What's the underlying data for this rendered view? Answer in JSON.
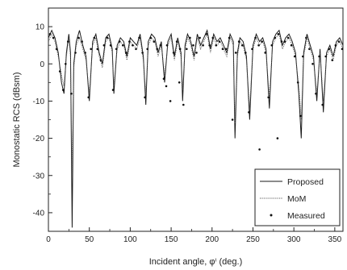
{
  "chart_data": {
    "type": "line",
    "title": "",
    "xlabel": "Incident angle, φⁱ (deg.)",
    "ylabel": "Monostatic RCS (dBsm)",
    "xlim": [
      0,
      360
    ],
    "ylim": [
      -45,
      15
    ],
    "x_ticks": [
      0,
      50,
      100,
      150,
      200,
      250,
      300,
      350
    ],
    "y_ticks": [
      10,
      0,
      -10,
      -20,
      -30,
      -40
    ],
    "grid": false,
    "legend_position": "bottom-right",
    "series": [
      {
        "name": "Proposed",
        "style": "solid",
        "color": "#1a1a1a",
        "x": [
          0,
          4,
          8,
          12,
          16,
          19,
          22,
          25,
          27,
          29,
          31,
          34,
          38,
          42,
          46,
          50,
          54,
          58,
          62,
          66,
          70,
          74,
          78,
          80,
          84,
          88,
          92,
          96,
          100,
          104,
          108,
          112,
          116,
          119,
          122,
          126,
          130,
          134,
          138,
          142,
          146,
          150,
          154,
          158,
          162,
          164,
          167,
          170,
          174,
          178,
          182,
          186,
          190,
          194,
          198,
          202,
          206,
          210,
          214,
          218,
          222,
          226,
          228,
          231,
          234,
          238,
          242,
          246,
          250,
          254,
          258,
          262,
          266,
          270,
          274,
          278,
          282,
          286,
          290,
          294,
          298,
          302,
          306,
          309,
          312,
          316,
          320,
          324,
          328,
          332,
          336,
          340,
          344,
          348,
          352,
          356,
          360
        ],
        "y": [
          7,
          9,
          7,
          3,
          -5,
          -8,
          3,
          8,
          3,
          -44,
          0,
          6,
          9,
          5,
          2,
          -10,
          6,
          8,
          3,
          0,
          7,
          8,
          4,
          -8,
          5,
          7,
          6,
          2,
          7,
          6,
          5,
          8,
          2,
          -11,
          6,
          8,
          7,
          3,
          6,
          -5,
          6,
          8,
          2,
          7,
          3,
          -10,
          5,
          8,
          6,
          2,
          8,
          5,
          7,
          9,
          4,
          8,
          6,
          7,
          5,
          3,
          8,
          6,
          -20,
          3,
          7,
          6,
          2,
          -15,
          5,
          8,
          6,
          7,
          4,
          -12,
          6,
          8,
          9,
          5,
          7,
          8,
          6,
          3,
          -8,
          -20,
          3,
          8,
          5,
          2,
          -10,
          4,
          -13,
          3,
          5,
          2,
          6,
          7,
          5
        ]
      },
      {
        "name": "MoM",
        "style": "dotted",
        "color": "#555555",
        "x": [
          0,
          4,
          8,
          12,
          16,
          19,
          22,
          25,
          27,
          29,
          31,
          34,
          38,
          42,
          46,
          50,
          54,
          58,
          62,
          66,
          70,
          74,
          78,
          80,
          84,
          88,
          92,
          96,
          100,
          104,
          108,
          112,
          116,
          119,
          122,
          126,
          130,
          134,
          138,
          142,
          146,
          150,
          154,
          158,
          162,
          164,
          167,
          170,
          174,
          178,
          182,
          186,
          190,
          194,
          198,
          202,
          206,
          210,
          214,
          218,
          222,
          226,
          228,
          231,
          234,
          238,
          242,
          246,
          250,
          254,
          258,
          262,
          266,
          270,
          274,
          278,
          282,
          286,
          290,
          294,
          298,
          302,
          306,
          309,
          312,
          316,
          320,
          324,
          328,
          332,
          336,
          340,
          344,
          348,
          352,
          356,
          360
        ],
        "y": [
          6,
          8,
          6,
          2,
          -3,
          -6,
          2,
          7,
          2,
          -30,
          -1,
          5,
          7,
          4,
          1,
          -8,
          5,
          7,
          2,
          -1,
          6,
          7,
          3,
          -6,
          4,
          6,
          5,
          1,
          6,
          5,
          4,
          7,
          1,
          -8,
          5,
          7,
          6,
          2,
          5,
          -3,
          5,
          7,
          1,
          6,
          2,
          -7,
          4,
          7,
          5,
          1,
          7,
          4,
          6,
          8,
          3,
          7,
          5,
          6,
          4,
          2,
          7,
          5,
          -16,
          2,
          6,
          5,
          1,
          -12,
          4,
          7,
          5,
          6,
          3,
          -9,
          5,
          7,
          8,
          4,
          6,
          7,
          5,
          2,
          -6,
          -15,
          2,
          7,
          4,
          1,
          -8,
          3,
          -10,
          2,
          4,
          1,
          5,
          6,
          4
        ]
      },
      {
        "name": "Measured",
        "style": "points",
        "color": "#111111",
        "x": [
          2,
          6,
          10,
          14,
          18,
          21,
          24,
          28,
          33,
          37,
          41,
          45,
          49,
          52,
          56,
          60,
          64,
          68,
          72,
          76,
          79,
          83,
          87,
          91,
          95,
          99,
          103,
          107,
          111,
          115,
          118,
          121,
          125,
          129,
          133,
          137,
          141,
          145,
          149,
          153,
          157,
          161,
          165,
          169,
          173,
          177,
          181,
          185,
          189,
          193,
          197,
          201,
          205,
          209,
          213,
          217,
          221,
          225,
          229,
          233,
          237,
          241,
          245,
          249,
          253,
          257,
          261,
          265,
          269,
          273,
          277,
          281,
          285,
          289,
          293,
          297,
          301,
          305,
          308,
          311,
          315,
          319,
          323,
          327,
          331,
          335,
          339,
          343,
          347,
          351,
          355,
          359,
          144,
          160,
          258,
          280
        ],
        "y": [
          8,
          7,
          4,
          -2,
          -7,
          0,
          6,
          -8,
          3,
          7,
          6,
          3,
          -9,
          4,
          7,
          4,
          1,
          5,
          7,
          5,
          -7,
          4,
          6,
          5,
          3,
          6,
          5,
          4,
          7,
          3,
          -9,
          4,
          7,
          6,
          4,
          5,
          -4,
          5,
          -10,
          3,
          6,
          4,
          -11,
          4,
          7,
          5,
          3,
          7,
          5,
          8,
          5,
          7,
          5,
          6,
          4,
          4,
          7,
          -15,
          3,
          6,
          5,
          3,
          -13,
          4,
          7,
          5,
          6,
          3,
          -9,
          5,
          7,
          8,
          6,
          6,
          7,
          5,
          2,
          -5,
          -14,
          2,
          7,
          4,
          0,
          -8,
          2,
          -11,
          2,
          4,
          1,
          5,
          6,
          4,
          -6,
          -5,
          -23,
          -20
        ]
      }
    ]
  }
}
